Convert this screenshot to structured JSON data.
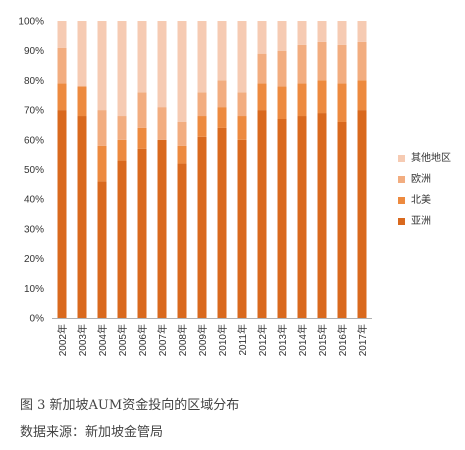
{
  "chart_data": {
    "type": "bar",
    "stacked": true,
    "categories": [
      "2002年",
      "2003年",
      "2004年",
      "2005年",
      "2006年",
      "2007年",
      "2008年",
      "2009年",
      "2010年",
      "2011年",
      "2012年",
      "2013年",
      "2014年",
      "2015年",
      "2016年",
      "2017年"
    ],
    "series": [
      {
        "name": "亚洲",
        "color": "#d9691e",
        "values": [
          70,
          68,
          46,
          53,
          57,
          60,
          52,
          61,
          64,
          60,
          70,
          67,
          68,
          69,
          66,
          70
        ]
      },
      {
        "name": "北美",
        "color": "#ed8a3f",
        "values": [
          9,
          10,
          12,
          7,
          7,
          0,
          6,
          7,
          7,
          8,
          9,
          11,
          11,
          11,
          13,
          10
        ]
      },
      {
        "name": "欧洲",
        "color": "#f2ad80",
        "values": [
          12,
          0,
          12,
          8,
          12,
          11,
          8,
          8,
          9,
          8,
          10,
          12,
          13,
          13,
          13,
          13
        ]
      },
      {
        "name": "其他地区",
        "color": "#f6cbb3",
        "values": [
          9,
          22,
          30,
          32,
          24,
          29,
          34,
          24,
          20,
          24,
          11,
          10,
          8,
          7,
          8,
          7
        ]
      }
    ],
    "yticks": [
      "0%",
      "10%",
      "20%",
      "30%",
      "40%",
      "50%",
      "60%",
      "70%",
      "80%",
      "90%",
      "100%"
    ],
    "ylim": [
      0,
      100
    ],
    "grid": false,
    "legend_position": "right"
  },
  "caption": {
    "title": "图 3 新加坡AUM资金投向的区域分布",
    "source": "数据来源：新加坡金管局"
  }
}
